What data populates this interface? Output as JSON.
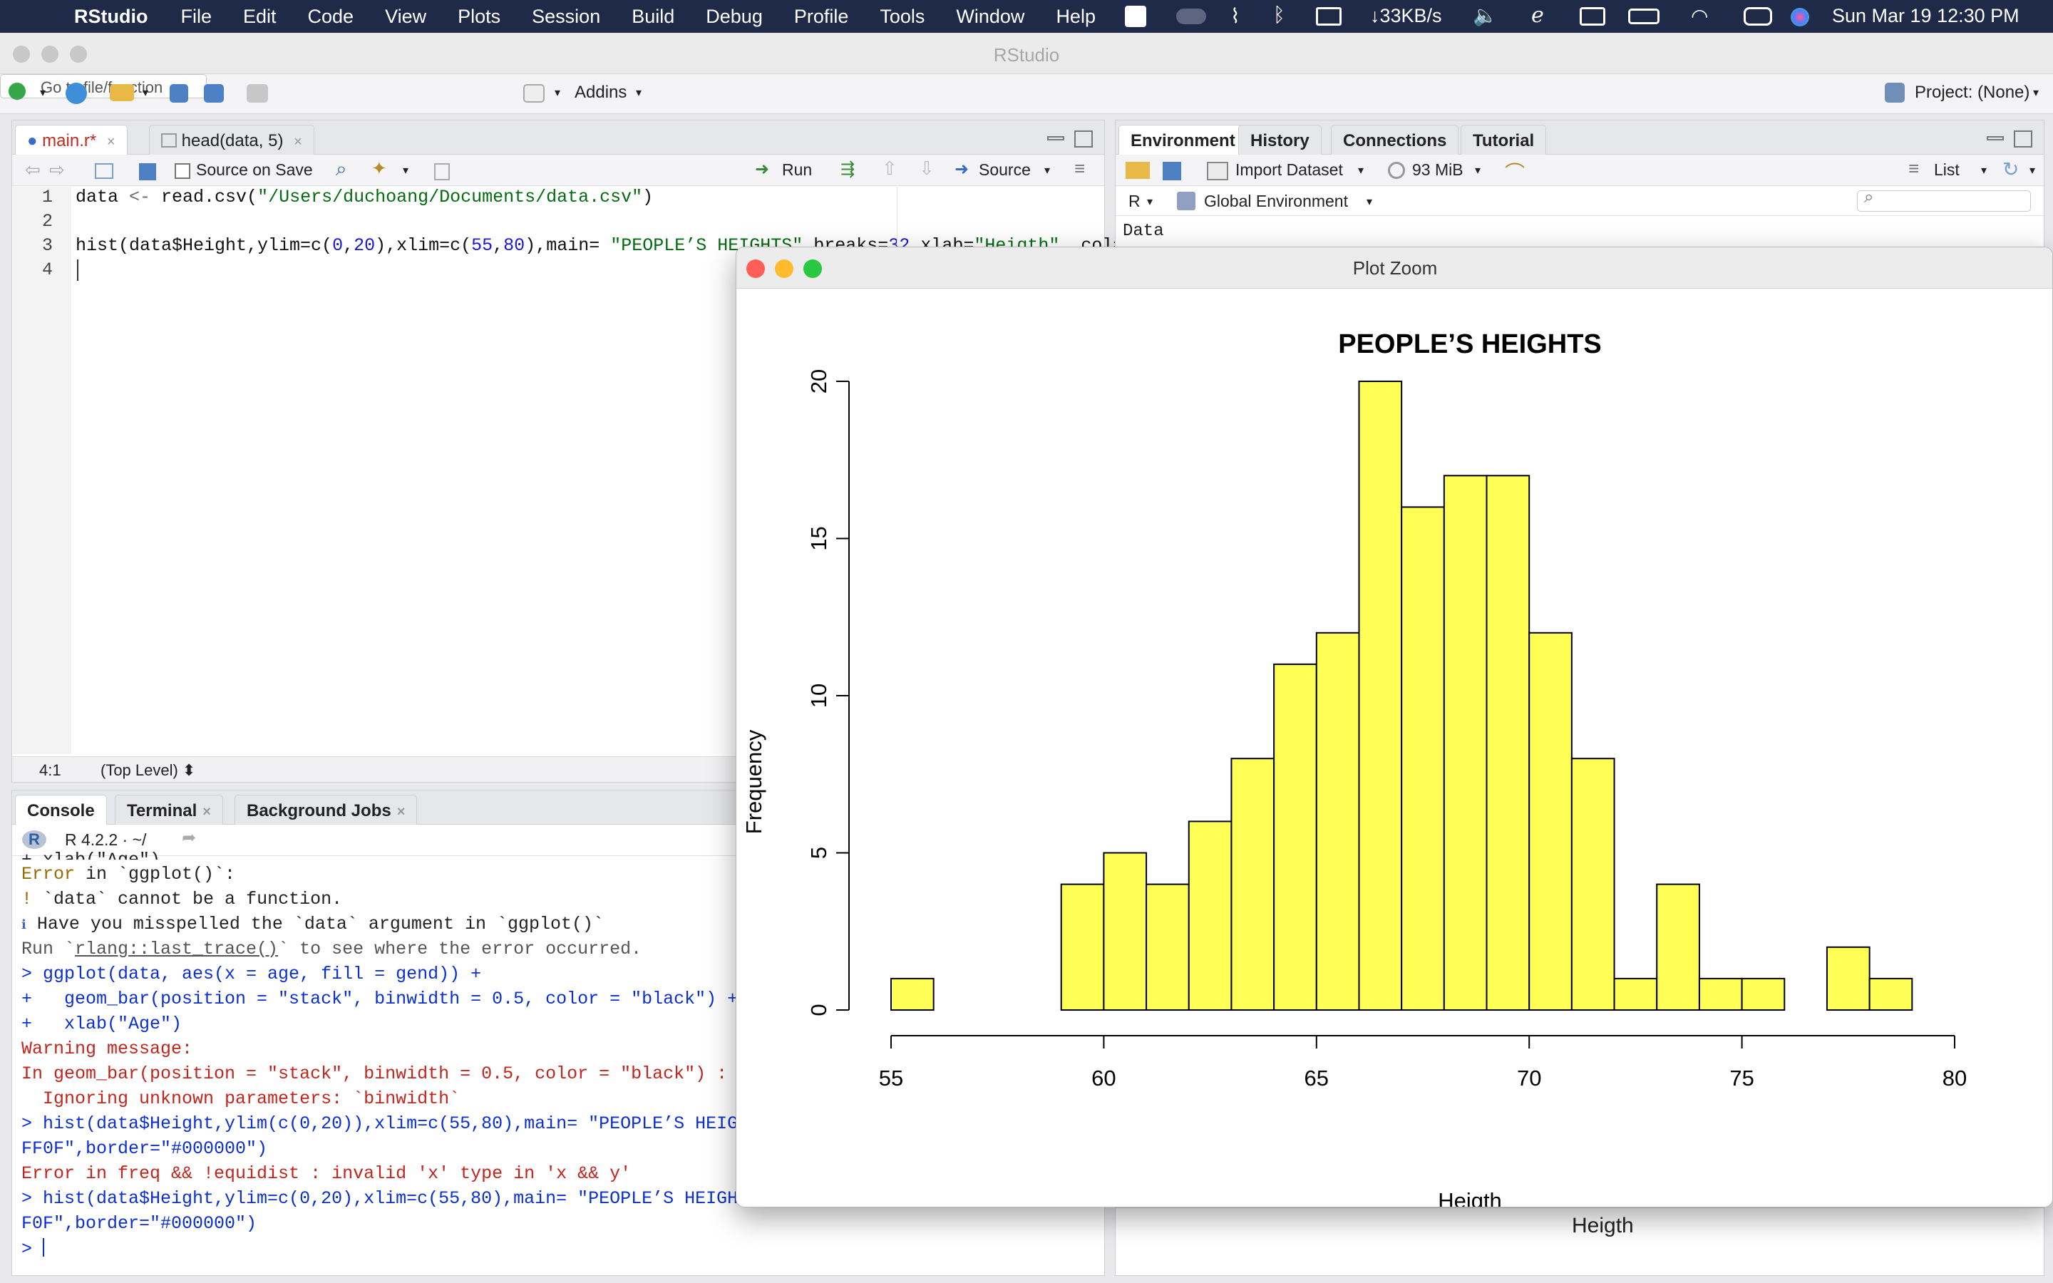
{
  "menubar": {
    "app": "RStudio",
    "items": [
      "File",
      "Edit",
      "Code",
      "View",
      "Plots",
      "Session",
      "Build",
      "Debug",
      "Profile",
      "Tools",
      "Window",
      "Help"
    ],
    "net_speed": "↓33KB/s",
    "datetime": "Sun Mar 19  12:30 PM"
  },
  "window": {
    "title": "RStudio"
  },
  "toolbar": {
    "goto_placeholder": "Go to file/function",
    "addins": "Addins",
    "project": "Project: (None)"
  },
  "editor": {
    "tabs": [
      {
        "label": "main.r*"
      },
      {
        "label": "head(data, 5)"
      }
    ],
    "source_on_save": "Source on Save",
    "run": "Run",
    "source": "Source",
    "lines": [
      "1",
      "2",
      "3",
      "4"
    ],
    "status_pos": "4:1",
    "status_scope": "(Top Level) ⬍"
  },
  "env": {
    "tabs": [
      "Environment",
      "History",
      "Connections",
      "Tutorial"
    ],
    "import": "Import Dataset",
    "memory": "93 MiB",
    "list": "List",
    "r_label": "R",
    "global": "Global Environment",
    "data_header": "Data",
    "bottom_label": "Heigth"
  },
  "console": {
    "tabs": [
      "Console",
      "Terminal",
      "Background Jobs"
    ],
    "version": "R 4.2.2 · ~/"
  },
  "zoom": {
    "title": "Plot Zoom"
  },
  "chart_data": {
    "type": "bar",
    "title": "PEOPLE’S HEIGHTS",
    "xlabel": "Heigth",
    "ylabel": "Frequency",
    "xlim": [
      55,
      80
    ],
    "ylim": [
      0,
      20
    ],
    "bin_width": 1,
    "bin_starts": [
      55,
      56,
      57,
      58,
      59,
      60,
      61,
      62,
      63,
      64,
      65,
      66,
      67,
      68,
      69,
      70,
      71,
      72,
      73,
      74,
      75,
      76,
      77,
      78
    ],
    "values": [
      1,
      0,
      0,
      0,
      4,
      5,
      4,
      6,
      8,
      11,
      12,
      20,
      16,
      17,
      17,
      12,
      8,
      1,
      4,
      1,
      1,
      0,
      2,
      1
    ],
    "x_ticks": [
      55,
      60,
      65,
      70,
      75,
      80
    ],
    "y_ticks": [
      0,
      5,
      10,
      15,
      20
    ],
    "fill": "#ffff55",
    "border": "#000000"
  },
  "colors": {
    "menubar": "#1f2a48",
    "console_blue": "#0a2fd4",
    "console_red": "#c3251c"
  }
}
